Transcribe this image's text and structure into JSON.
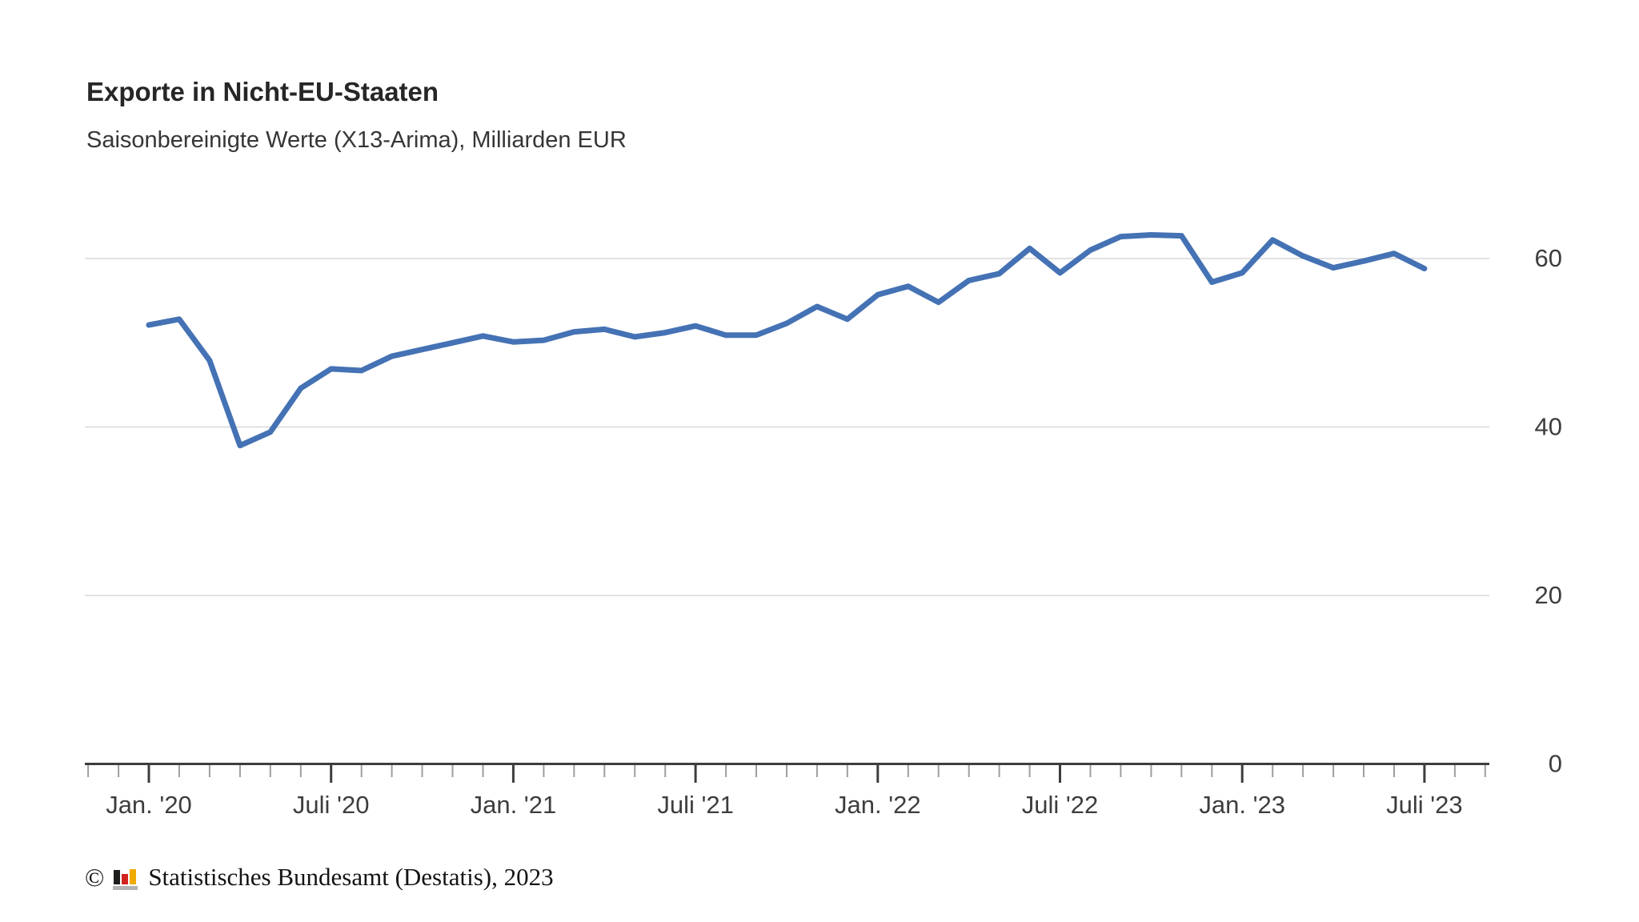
{
  "header": {
    "title": "Exporte in Nicht-EU-Staaten",
    "subtitle": "Saisonbereinigte Werte (X13-Arima), Milliarden EUR"
  },
  "chart_data": {
    "type": "line",
    "title": "Exporte in Nicht-EU-Staaten",
    "subtitle": "Saisonbereinigte Werte (X13-Arima), Milliarden EUR",
    "unit": "Milliarden EUR",
    "series_name": "Exporte in Nicht-EU-Staaten, saisonbereinigt",
    "categories": [
      "Jan. 2020",
      "Feb. 2020",
      "März 2020",
      "Apr. 2020",
      "Mai 2020",
      "Juni 2020",
      "Juli 2020",
      "Aug. 2020",
      "Sep. 2020",
      "Okt. 2020",
      "Nov. 2020",
      "Dez. 2020",
      "Jan. 2021",
      "Feb. 2021",
      "März 2021",
      "Apr. 2021",
      "Mai 2021",
      "Juni 2021",
      "Juli 2021",
      "Aug. 2021",
      "Sep. 2021",
      "Okt. 2021",
      "Nov. 2021",
      "Dez. 2021",
      "Jan. 2022",
      "Feb. 2022",
      "März 2022",
      "Apr. 2022",
      "Mai 2022",
      "Juni 2022",
      "Juli 2022",
      "Aug. 2022",
      "Sep. 2022",
      "Okt. 2022",
      "Nov. 2022",
      "Dez. 2022",
      "Jan. 2023",
      "Feb. 2023",
      "März 2023",
      "Apr. 2023",
      "Mai 2023",
      "Juni 2023",
      "Juli 2023"
    ],
    "values": [
      52.1,
      52.8,
      47.9,
      37.8,
      39.4,
      44.6,
      46.9,
      46.7,
      48.4,
      49.2,
      50.0,
      50.8,
      50.1,
      50.3,
      51.3,
      51.6,
      50.7,
      51.2,
      52.0,
      50.9,
      50.9,
      52.3,
      54.3,
      52.8,
      55.7,
      56.7,
      54.8,
      57.4,
      58.2,
      61.2,
      58.3,
      61.0,
      62.6,
      62.8,
      62.7,
      57.2,
      58.3,
      62.2,
      60.3,
      58.9,
      59.7,
      60.6,
      58.8
    ],
    "ylim": [
      0,
      65
    ],
    "grid": "horizontal",
    "legend": "none",
    "y_axis": {
      "side": "right",
      "ticks": [
        60,
        40,
        20,
        0
      ],
      "gridlines": [
        60,
        40,
        20
      ]
    },
    "x_axis": {
      "tick_labels": [
        "Jan. '20",
        "Juli '20",
        "Jan. '21",
        "Juli '21",
        "Jan. '22",
        "Juli '22",
        "Jan. '23",
        "Juli '23"
      ],
      "label_every_n_months": 6,
      "minor_tick_interval": "month"
    },
    "colors": {
      "line": "#4472b4",
      "gridline": "#d8d8d8",
      "axis": "#3d3d3d",
      "minor_tick": "#9e9e9e",
      "tick_label": "#3d3d3d"
    }
  },
  "footer": {
    "copyright_symbol": "©",
    "text": "Statistisches Bundesamt (Destatis), 2023",
    "logo": "destatis-bar-chart-logo",
    "logo_colors": {
      "black": "#1d1d1b",
      "red": "#d22321",
      "gold": "#f0aa00",
      "base": "#b2b2b2"
    }
  }
}
